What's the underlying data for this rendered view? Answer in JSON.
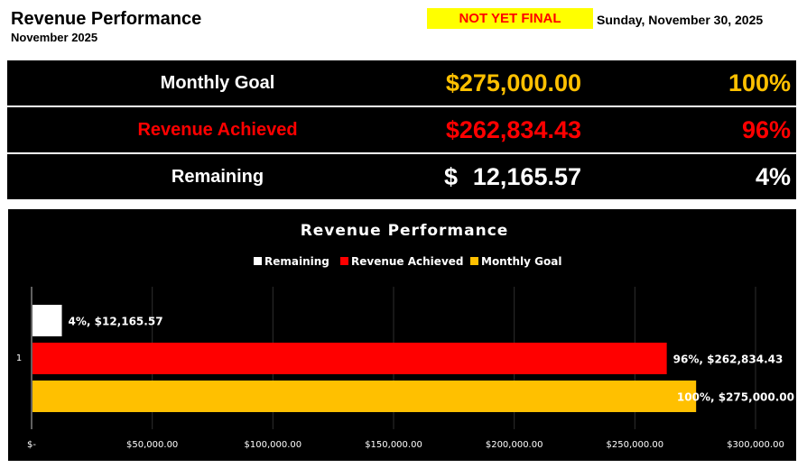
{
  "header": {
    "title": "Revenue Performance",
    "subtitle": "November 2025",
    "status_badge": "NOT YET FINAL",
    "date": "Sunday, November 30, 2025"
  },
  "summary": {
    "goal": {
      "label": "Monthly Goal",
      "amount": "$275,000.00",
      "percent": "100%"
    },
    "achieved": {
      "label": "Revenue Achieved",
      "amount": "$262,834.43",
      "percent": "96%"
    },
    "remaining": {
      "label": "Remaining",
      "currency": "$",
      "amount": "12,165.57",
      "percent": "4%"
    }
  },
  "colors": {
    "gold": "#ffc000",
    "red": "#ff0000",
    "white": "#ffffff",
    "background": "#000000",
    "badge": "#ffff00"
  },
  "chart_data": {
    "type": "bar",
    "orientation": "horizontal",
    "title": "Revenue Performance",
    "categories": [
      "1"
    ],
    "series": [
      {
        "name": "Remaining",
        "values": [
          12165.57
        ],
        "percent": "4%",
        "label": "4%, $12,165.57",
        "color": "#ffffff"
      },
      {
        "name": "Revenue Achieved",
        "values": [
          262834.43
        ],
        "percent": "96%",
        "label": "96%, $262,834.43",
        "color": "#ff0000"
      },
      {
        "name": "Monthly Goal",
        "values": [
          275000
        ],
        "percent": "100%",
        "label": "100%, $275,000.00",
        "color": "#ffc000"
      }
    ],
    "xlim": [
      0,
      300000
    ],
    "xticks": [
      0,
      50000,
      100000,
      150000,
      200000,
      250000,
      300000
    ],
    "xtick_labels": [
      "$-",
      "$50,000.00",
      "$100,000.00",
      "$150,000.00",
      "$200,000.00",
      "$250,000.00",
      "$300,000.00"
    ],
    "legend": "top",
    "grid": true
  }
}
